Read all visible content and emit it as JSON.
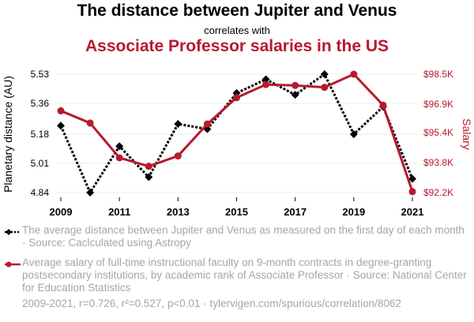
{
  "title": "The distance between Jupiter and Venus",
  "subtitle": "correlates with",
  "title2": "Associate Professor salaries in the US",
  "chart_data": {
    "type": "line",
    "x": [
      2009,
      2010,
      2011,
      2012,
      2013,
      2014,
      2015,
      2016,
      2017,
      2018,
      2019,
      2020,
      2021
    ],
    "x_ticks": [
      "2009",
      "2011",
      "2013",
      "2015",
      "2017",
      "2019",
      "2021"
    ],
    "xlim": [
      2009,
      2021
    ],
    "series": [
      {
        "name": "The average distance between Jupiter and Venus as measured on the first day of each month · Source: Caclculated using Astropy",
        "axis": "left",
        "color": "#000000",
        "style": "dotted",
        "marker": "diamond",
        "values": [
          5.23,
          4.84,
          5.11,
          4.93,
          5.24,
          5.21,
          5.42,
          5.5,
          5.41,
          5.53,
          5.18,
          5.34,
          4.92
        ]
      },
      {
        "name": "Average salary of full-time instructional faculty on 9-month contracts in degree-granting postsecondary institutions, by academic rank of Associate Professor · Source: National Center for Education Statistics",
        "axis": "right",
        "color": "#b8192e",
        "style": "solid",
        "marker": "circle",
        "values": [
          96.55,
          95.9,
          94.05,
          93.6,
          94.15,
          95.85,
          97.25,
          97.95,
          97.9,
          97.8,
          98.5,
          96.85,
          92.25
        ]
      }
    ],
    "y_left": {
      "label": "Planetary distance (AU)",
      "ticks": [
        "4.84",
        "5.01",
        "5.18",
        "5.36",
        "5.53"
      ],
      "tick_values": [
        4.84,
        5.01,
        5.18,
        5.36,
        5.53
      ],
      "ylim": [
        4.84,
        5.53
      ]
    },
    "y_right": {
      "label": "Salary",
      "ticks": [
        "$92.2K",
        "$93.8K",
        "$95.4K",
        "$96.9K",
        "$98.5K"
      ],
      "tick_values": [
        92.2,
        93.8,
        95.4,
        96.9,
        98.5
      ],
      "ylim": [
        92.2,
        98.5
      ]
    },
    "grid": true
  },
  "footer": "2009-2021, r=0.726, r²=0.527, p<0.01 · tylervigen.com/spurious/correlation/8062"
}
